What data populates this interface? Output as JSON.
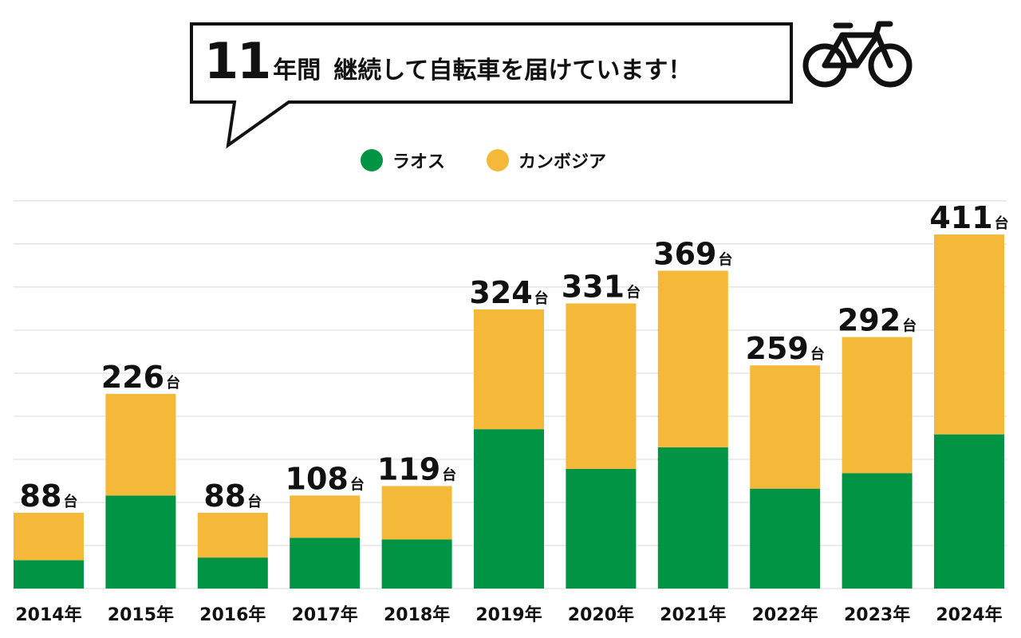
{
  "header": {
    "title_number": "11",
    "title_unit": "年間",
    "title_text": "継続して自転車を届けています！",
    "icon": "bicycle-icon"
  },
  "colors": {
    "laos": "#009444",
    "cambodia": "#F5B93A",
    "grid": "#d8d8d8",
    "text": "#111111"
  },
  "legend": [
    {
      "label": "ラオス",
      "color": "#009444"
    },
    {
      "label": "カンボジア",
      "color": "#F5B93A"
    }
  ],
  "chart_data": {
    "type": "bar",
    "stacked": true,
    "categories": [
      "2014年",
      "2015年",
      "2016年",
      "2017年",
      "2018年",
      "2019年",
      "2020年",
      "2021年",
      "2022年",
      "2023年",
      "2024年"
    ],
    "series": [
      {
        "name": "ラオス",
        "values": [
          33,
          108,
          36,
          59,
          57,
          185,
          139,
          164,
          116,
          134,
          179
        ]
      },
      {
        "name": "カンボジア",
        "values": [
          55,
          118,
          52,
          49,
          62,
          139,
          192,
          205,
          143,
          158,
          232
        ]
      }
    ],
    "totals": [
      "88",
      "226",
      "88",
      "108",
      "119",
      "324",
      "331",
      "369",
      "259",
      "292",
      "411"
    ],
    "total_unit": "台",
    "ylim": [
      0,
      450
    ],
    "grid": true,
    "legend_position": "top-center"
  }
}
